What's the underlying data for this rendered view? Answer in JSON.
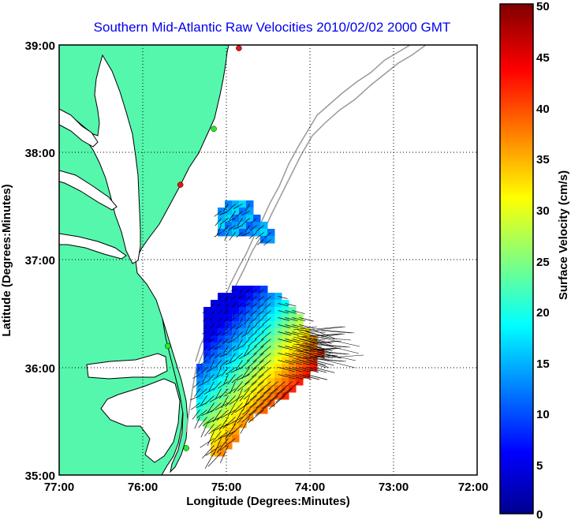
{
  "title": "Southern Mid-Atlantic Raw Velocities 2010/02/02 2000 GMT",
  "x_axis": {
    "label": "Longitude (Degrees:Minutes)",
    "ticks": [
      "77:00",
      "76:00",
      "75:00",
      "74:00",
      "73:00",
      "72:00"
    ],
    "range": [
      -77,
      -72
    ]
  },
  "y_axis": {
    "label": "Latitude (Degrees:Minutes)",
    "ticks": [
      "39:00",
      "38:00",
      "37:00",
      "36:00",
      "35:00"
    ],
    "range": [
      35,
      39
    ]
  },
  "colorbar": {
    "label": "Surface Velocity (cm/s)",
    "ticks": [
      "0",
      "5",
      "10",
      "15",
      "20",
      "25",
      "30",
      "35",
      "40",
      "45",
      "50"
    ],
    "range": [
      0,
      50
    ],
    "colormap": "jet"
  },
  "colors": {
    "land": "#55f7ad",
    "coast": "#000000",
    "bathymetry": "#9a9a9a",
    "title": "#0000ee",
    "station_green": "#22ee22",
    "station_red": "#ee1111"
  },
  "chart_data": {
    "type": "map",
    "grid": true,
    "stations": [
      {
        "lon": -74.85,
        "lat": 38.97,
        "status": "red"
      },
      {
        "lon": -75.15,
        "lat": 38.22,
        "status": "green"
      },
      {
        "lon": -75.55,
        "lat": 37.7,
        "status": "red"
      },
      {
        "lon": -75.7,
        "lat": 36.2,
        "status": "green"
      },
      {
        "lon": -75.48,
        "lat": 35.25,
        "status": "green"
      }
    ]
  }
}
